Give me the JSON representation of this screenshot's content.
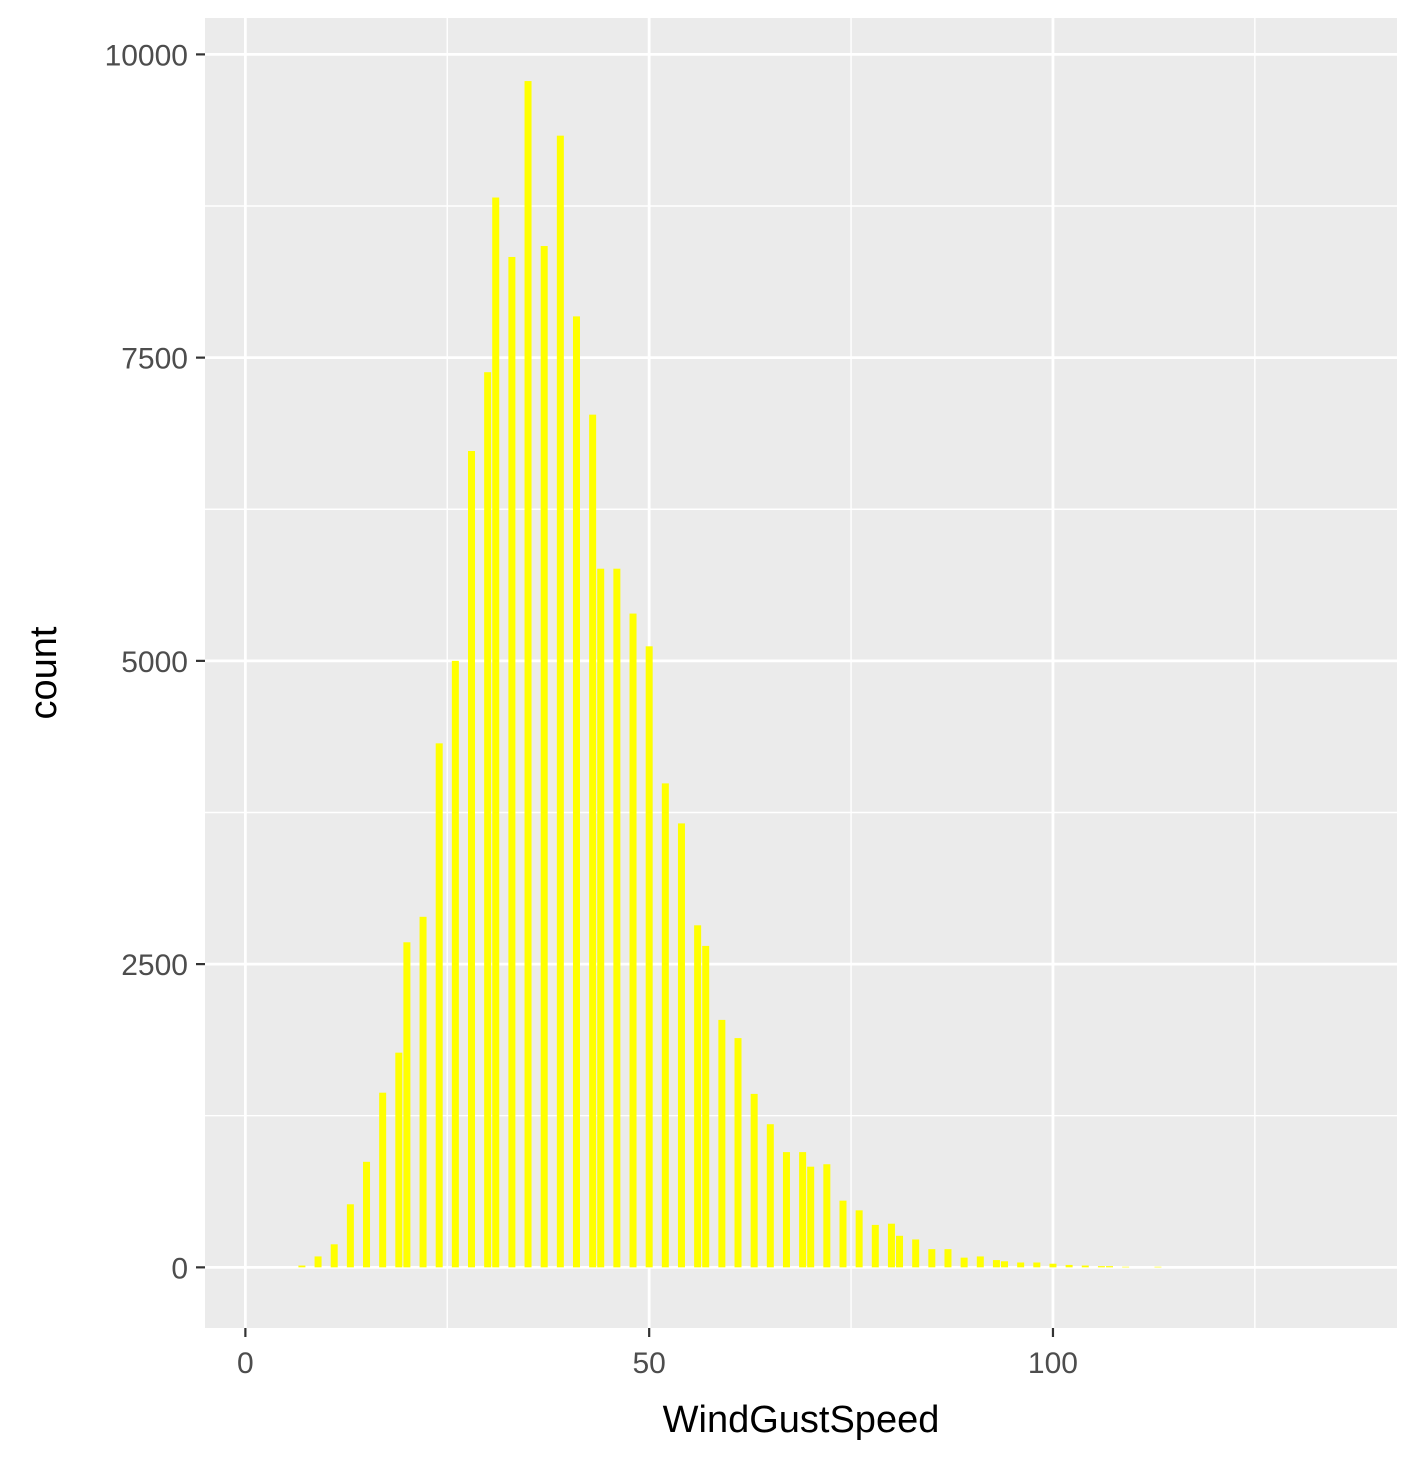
{
  "chart_data": {
    "type": "bar",
    "title": "",
    "xlabel": "WindGustSpeed",
    "ylabel": "count",
    "x_ticks": [
      "0",
      "50",
      "100"
    ],
    "y_ticks": [
      "0",
      "2500",
      "5000",
      "7500",
      "10000"
    ],
    "xlim": [
      -5,
      142.6
    ],
    "ylim": [
      -500,
      10300
    ],
    "grid": true,
    "legend": "none",
    "series": [
      {
        "x": [
          7,
          9,
          11,
          13,
          15,
          17,
          19,
          20,
          22,
          24,
          26,
          28,
          30,
          31,
          33,
          35,
          37,
          39,
          41,
          43,
          44,
          46,
          48,
          50,
          52,
          54,
          56,
          57,
          59,
          61,
          63,
          65,
          67,
          69,
          70,
          72,
          74,
          76,
          78,
          80,
          81,
          83,
          85,
          87,
          89,
          91,
          93,
          94,
          96,
          98,
          100,
          102,
          104,
          106,
          107,
          109,
          113
        ],
        "values": [
          15,
          90,
          190,
          520,
          870,
          1440,
          1770,
          2680,
          2890,
          4320,
          5000,
          6730,
          7380,
          8820,
          8330,
          9780,
          8420,
          9330,
          7840,
          7030,
          5760,
          5760,
          5390,
          5120,
          3990,
          3660,
          2820,
          2650,
          2040,
          1890,
          1430,
          1180,
          950,
          950,
          830,
          850,
          550,
          470,
          350,
          360,
          260,
          230,
          150,
          150,
          80,
          90,
          60,
          50,
          40,
          40,
          30,
          20,
          15,
          10,
          10,
          5,
          5
        ]
      }
    ],
    "colors": {
      "bar_fill": "#FFFF00",
      "panel_background": "#EBEBEB",
      "grid_line": "#FFFFFF",
      "tick_text": "#4D4D4D",
      "title_text": "#000000"
    }
  }
}
